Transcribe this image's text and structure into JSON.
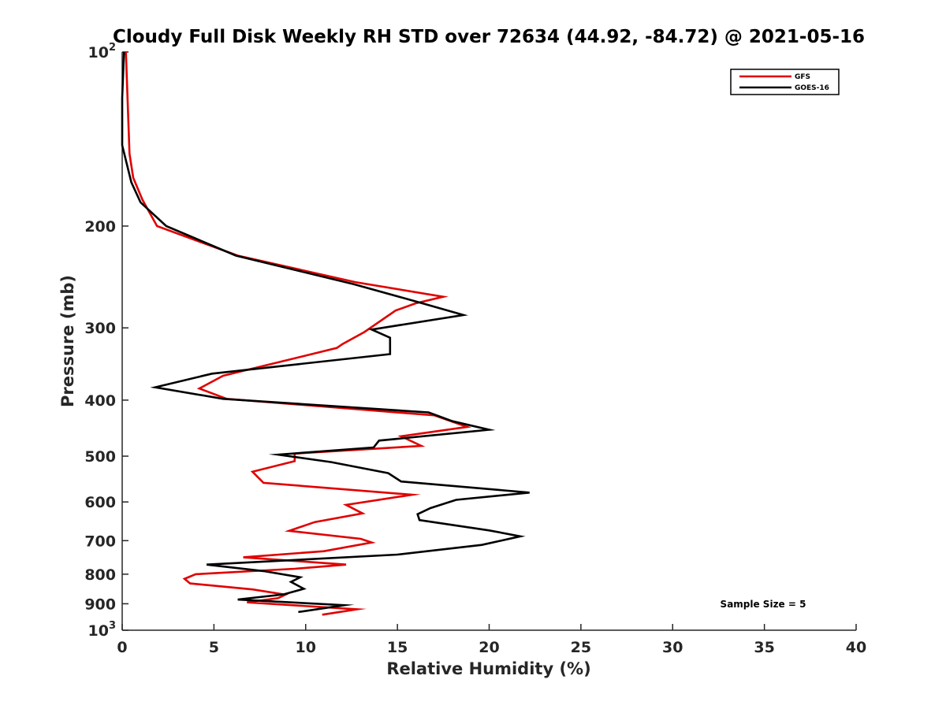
{
  "chart_data": {
    "type": "line",
    "title": "Cloudy Full Disk Weekly RH STD over 72634 (44.92, -84.72) @ 2021-05-16",
    "xlabel": "Relative Humidity (%)",
    "ylabel": "Pressure (mb)",
    "xlim": [
      0,
      40
    ],
    "ylim": [
      100,
      1000
    ],
    "y_scale": "log",
    "y_reversed": true,
    "grid": false,
    "legend_position": "top-right",
    "x_ticks": [
      {
        "value": 0,
        "label": "0"
      },
      {
        "value": 5,
        "label": "5"
      },
      {
        "value": 10,
        "label": "10"
      },
      {
        "value": 15,
        "label": "15"
      },
      {
        "value": 20,
        "label": "20"
      },
      {
        "value": 25,
        "label": "25"
      },
      {
        "value": 30,
        "label": "30"
      },
      {
        "value": 35,
        "label": "35"
      },
      {
        "value": 40,
        "label": "40"
      }
    ],
    "y_ticks": [
      {
        "value": 100,
        "base": "10",
        "exp": "2"
      },
      {
        "value": 200,
        "label": "200"
      },
      {
        "value": 300,
        "label": "300"
      },
      {
        "value": 400,
        "label": "400"
      },
      {
        "value": 500,
        "label": "500"
      },
      {
        "value": 600,
        "label": "600"
      },
      {
        "value": 700,
        "label": "700"
      },
      {
        "value": 800,
        "label": "800"
      },
      {
        "value": 900,
        "label": "900"
      },
      {
        "value": 1000,
        "base": "10",
        "exp": "3"
      }
    ],
    "series": [
      {
        "name": "GFS",
        "color": "#e00000",
        "points": [
          [
            0.2,
            100
          ],
          [
            0.4,
            150
          ],
          [
            0.6,
            165
          ],
          [
            1.1,
            180
          ],
          [
            1.9,
            200
          ],
          [
            6.3,
            225
          ],
          [
            12.7,
            250
          ],
          [
            17.5,
            265
          ],
          [
            16.0,
            272
          ],
          [
            14.9,
            280
          ],
          [
            13.2,
            305
          ],
          [
            12.0,
            320
          ],
          [
            11.7,
            325
          ],
          [
            5.5,
            363
          ],
          [
            4.2,
            382
          ],
          [
            5.7,
            398
          ],
          [
            17.0,
            425
          ],
          [
            18.8,
            445
          ],
          [
            15.2,
            462
          ],
          [
            16.3,
            480
          ],
          [
            9.4,
            495
          ],
          [
            9.4,
            510
          ],
          [
            7.1,
            532
          ],
          [
            7.7,
            556
          ],
          [
            15.8,
            583
          ],
          [
            12.2,
            607
          ],
          [
            13.1,
            628
          ],
          [
            10.5,
            650
          ],
          [
            9.1,
            673
          ],
          [
            13.0,
            695
          ],
          [
            13.6,
            705
          ],
          [
            11.0,
            730
          ],
          [
            6.6,
            748
          ],
          [
            12.2,
            770
          ],
          [
            9.4,
            783
          ],
          [
            4.0,
            800
          ],
          [
            3.4,
            815
          ],
          [
            3.7,
            830
          ],
          [
            7.1,
            850
          ],
          [
            8.9,
            868
          ],
          [
            8.5,
            880
          ],
          [
            6.8,
            895
          ],
          [
            12.8,
            920
          ],
          [
            10.9,
            940
          ]
        ]
      },
      {
        "name": "GOES-16",
        "color": "#000000",
        "points": [
          [
            0.1,
            100
          ],
          [
            0.0,
            120
          ],
          [
            0.0,
            145
          ],
          [
            0.5,
            168
          ],
          [
            1.0,
            182
          ],
          [
            2.4,
            200
          ],
          [
            6.2,
            225
          ],
          [
            12.6,
            252
          ],
          [
            16.0,
            270
          ],
          [
            18.6,
            285
          ],
          [
            13.6,
            302
          ],
          [
            14.6,
            312
          ],
          [
            14.6,
            333
          ],
          [
            4.9,
            360
          ],
          [
            1.8,
            380
          ],
          [
            5.5,
            398
          ],
          [
            16.7,
            420
          ],
          [
            18.0,
            435
          ],
          [
            20.0,
            450
          ],
          [
            14.0,
            470
          ],
          [
            13.7,
            483
          ],
          [
            8.5,
            497
          ],
          [
            11.4,
            512
          ],
          [
            14.5,
            535
          ],
          [
            15.2,
            553
          ],
          [
            22.2,
            578
          ],
          [
            18.2,
            595
          ],
          [
            16.8,
            615
          ],
          [
            16.1,
            630
          ],
          [
            16.2,
            645
          ],
          [
            20.0,
            672
          ],
          [
            21.7,
            688
          ],
          [
            19.6,
            712
          ],
          [
            15.0,
            740
          ],
          [
            4.6,
            770
          ],
          [
            7.7,
            790
          ],
          [
            9.7,
            810
          ],
          [
            9.2,
            825
          ],
          [
            9.9,
            848
          ],
          [
            8.8,
            867
          ],
          [
            6.3,
            885
          ],
          [
            12.1,
            905
          ],
          [
            9.6,
            930
          ]
        ]
      }
    ],
    "annotation": "Sample Size = 5"
  }
}
